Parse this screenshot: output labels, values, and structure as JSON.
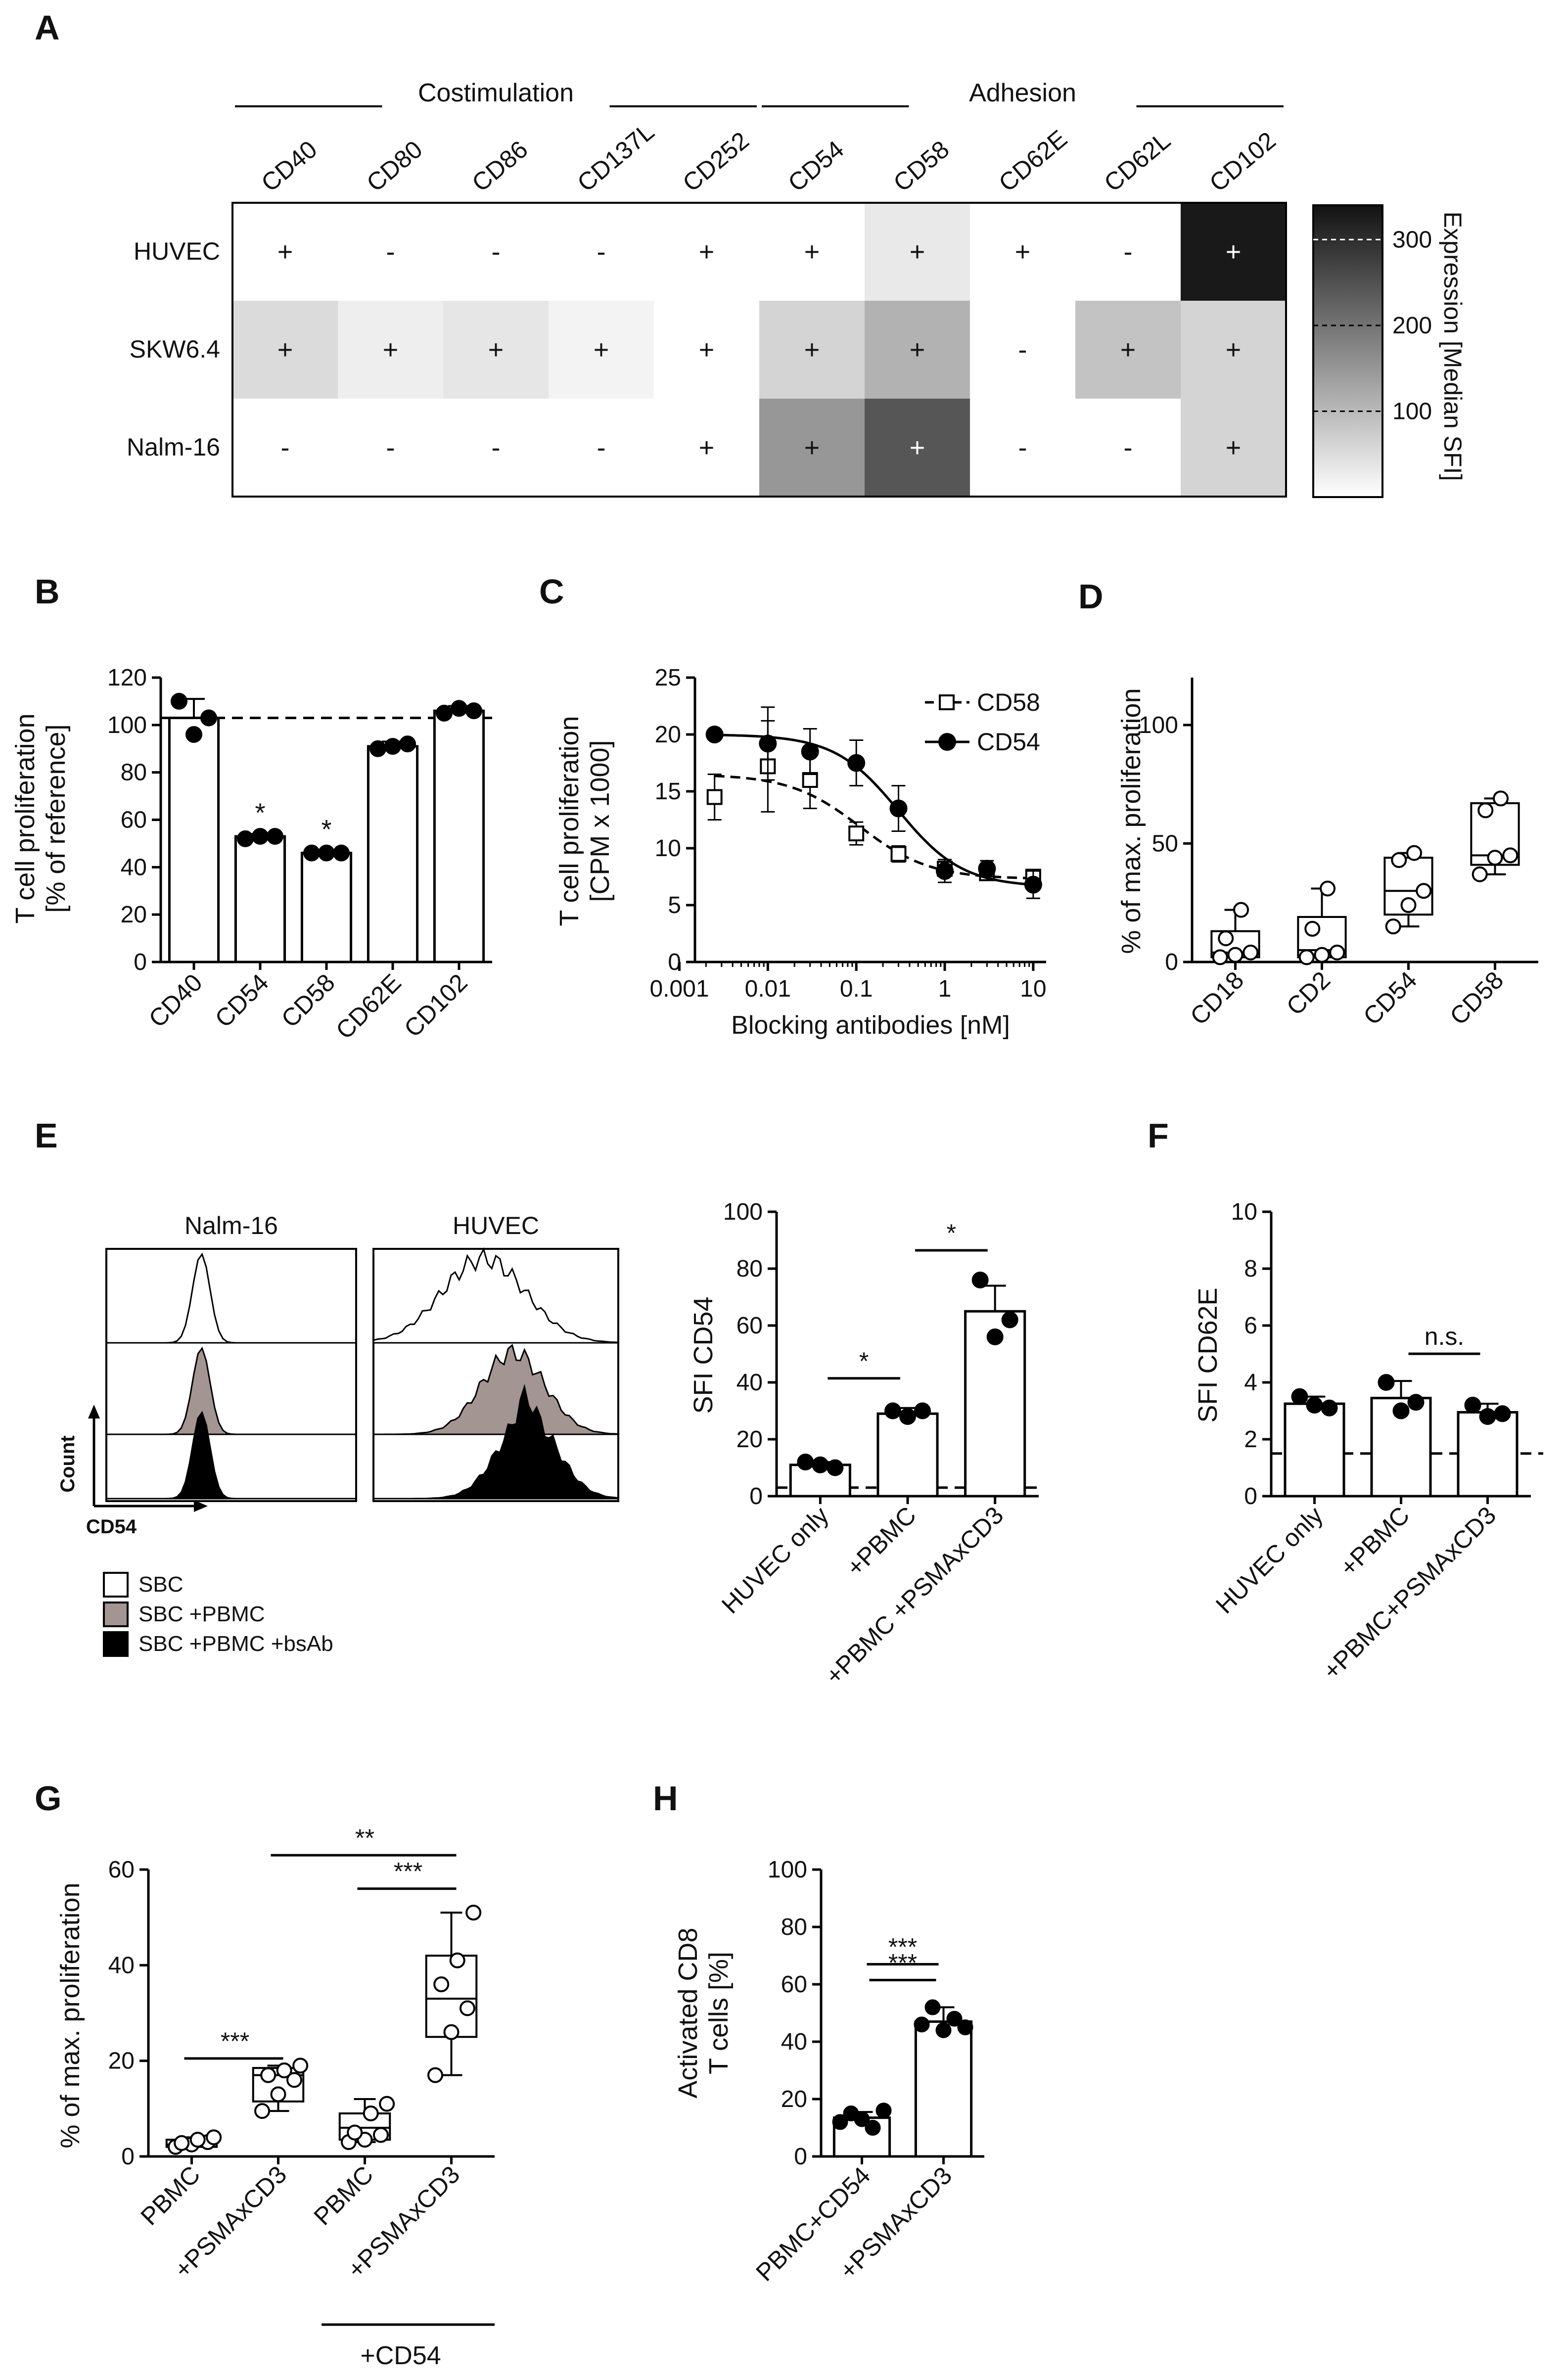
{
  "panels": {
    "A": "A",
    "B": "B",
    "C": "C",
    "D": "D",
    "E": "E",
    "F": "F",
    "G": "G",
    "H": "H"
  },
  "chart_data": [
    {
      "id": "A",
      "type": "heatmap",
      "groups": [
        {
          "label": "Costimulation",
          "columns": [
            "CD40",
            "CD80",
            "CD86",
            "CD137L",
            "CD252"
          ]
        },
        {
          "label": "Adhesion",
          "columns": [
            "CD54",
            "CD58",
            "CD62E",
            "CD62L",
            "CD102"
          ]
        }
      ],
      "columns": [
        "CD40",
        "CD80",
        "CD86",
        "CD137L",
        "CD252",
        "CD54",
        "CD58",
        "CD62E",
        "CD62L",
        "CD102"
      ],
      "rows": [
        "HUVEC",
        "SKW6.4",
        "Nalm-16"
      ],
      "signs": [
        [
          "+",
          "-",
          "-",
          "-",
          "+",
          "+",
          "+",
          "+",
          "-",
          "+"
        ],
        [
          "+",
          "+",
          "+",
          "+",
          "+",
          "+",
          "+",
          "-",
          "+",
          "+"
        ],
        [
          "-",
          "-",
          "-",
          "-",
          "+",
          "+",
          "+",
          "-",
          "-",
          "+"
        ]
      ],
      "values": [
        [
          0,
          0,
          0,
          0,
          0,
          0,
          25,
          0,
          0,
          330
        ],
        [
          45,
          18,
          30,
          10,
          0,
          55,
          105,
          0,
          80,
          55
        ],
        [
          0,
          0,
          0,
          0,
          0,
          145,
          240,
          0,
          0,
          55
        ]
      ],
      "colorbar": {
        "label": "Expression [Median SFI]",
        "ticks": [
          100,
          200,
          300
        ],
        "range": [
          0,
          340
        ]
      }
    },
    {
      "id": "B",
      "type": "bar",
      "categories": [
        "CD40",
        "CD54",
        "CD58",
        "CD62E",
        "CD102"
      ],
      "values": [
        103,
        53,
        46,
        91,
        106
      ],
      "errors": [
        8,
        1,
        1,
        2,
        2
      ],
      "points": [
        [
          110,
          96,
          103
        ],
        [
          52,
          53,
          53
        ],
        [
          46,
          46,
          46
        ],
        [
          90,
          91,
          92
        ],
        [
          105,
          107,
          106
        ]
      ],
      "significance": [
        "",
        "*",
        "*",
        "",
        ""
      ],
      "reference_line": 103,
      "ylabel": "T cell proliferation\n[% of reference]",
      "ylabel_lines": [
        "T cell proliferation",
        "[% of reference]"
      ],
      "ylim": [
        0,
        120
      ],
      "yticks": [
        0,
        20,
        40,
        60,
        80,
        100,
        120
      ]
    },
    {
      "id": "C",
      "type": "line",
      "xscale": "log",
      "xlabel": "Blocking antibodies [nM]",
      "ylabel_lines": [
        "T cell proliferation",
        "[CPM x 1000]"
      ],
      "xticks": [
        0.001,
        0.01,
        0.1,
        1,
        10
      ],
      "xtick_labels": [
        "0.001",
        "0.01",
        "0.1",
        "1",
        "10"
      ],
      "ylim": [
        0,
        25
      ],
      "yticks": [
        0,
        5,
        10,
        15,
        20,
        25
      ],
      "series": [
        {
          "name": "CD58",
          "marker": "open-square",
          "x": [
            0.0025,
            0.01,
            0.03,
            0.1,
            0.3,
            1,
            3,
            10
          ],
          "y": [
            14.5,
            17.2,
            16,
            11.3,
            9.5,
            8.2,
            7.8,
            7.5
          ],
          "errors": [
            2,
            4,
            2.5,
            1,
            0.7,
            0.6,
            0.5,
            0.6
          ]
        },
        {
          "name": "CD54",
          "marker": "filled-circle",
          "x": [
            0.0025,
            0.01,
            0.03,
            0.1,
            0.3,
            1,
            3,
            10
          ],
          "y": [
            20,
            19.2,
            18.5,
            17.5,
            13.5,
            8,
            8.2,
            6.8
          ],
          "errors": [
            0,
            3.2,
            2,
            2,
            2,
            1,
            0.7,
            1.2
          ]
        }
      ]
    },
    {
      "id": "D",
      "type": "box",
      "categories": [
        "CD18",
        "CD2",
        "CD54",
        "CD58"
      ],
      "boxes": [
        {
          "min": 2,
          "q1": 2,
          "median": 4,
          "q3": 13,
          "max": 22
        },
        {
          "min": 2,
          "q1": 2,
          "median": 5,
          "q3": 19,
          "max": 31
        },
        {
          "min": 15,
          "q1": 20,
          "median": 30,
          "q3": 44,
          "max": 46
        },
        {
          "min": 37,
          "q1": 41,
          "median": 45,
          "q3": 67,
          "max": 69
        }
      ],
      "points": [
        [
          2,
          3,
          4,
          10,
          22
        ],
        [
          2,
          3,
          4,
          14,
          31
        ],
        [
          15,
          24,
          30,
          43,
          46
        ],
        [
          37,
          44,
          45,
          64,
          69
        ]
      ],
      "ylabel": "% of max. proliferation",
      "ylim": [
        0,
        120
      ],
      "yticks": [
        0,
        50,
        100
      ]
    },
    {
      "id": "E_hist",
      "type": "histogram",
      "titles": [
        "Nalm-16",
        "HUVEC"
      ],
      "xlabel": "CD54",
      "ylabel": "Count",
      "legend": [
        "SBC",
        "SBC +PBMC",
        "SBC +PBMC +bsAb"
      ]
    },
    {
      "id": "E_bar",
      "type": "bar",
      "categories": [
        "HUVEC only",
        "+PBMC",
        "+PBMC +PSMAxCD3"
      ],
      "values": [
        11,
        29,
        65
      ],
      "errors": [
        1,
        2,
        9
      ],
      "points": [
        [
          12,
          11,
          10
        ],
        [
          30,
          28,
          30
        ],
        [
          76,
          56,
          62
        ]
      ],
      "reference_line": 3,
      "ylabel": "SFI  CD54",
      "ylim": [
        0,
        100
      ],
      "yticks": [
        0,
        20,
        40,
        60,
        80,
        100
      ],
      "brackets": [
        {
          "from": 0,
          "to": 1,
          "label": "*"
        },
        {
          "from": 1,
          "to": 2,
          "label": "*"
        }
      ]
    },
    {
      "id": "F",
      "type": "bar",
      "categories": [
        "HUVEC only",
        "+PBMC",
        "+PBMC+PSMAxCD3"
      ],
      "values": [
        3.25,
        3.45,
        2.95
      ],
      "errors": [
        0.25,
        0.6,
        0.3
      ],
      "points": [
        [
          3.5,
          3.2,
          3.1
        ],
        [
          4.0,
          3.0,
          3.3
        ],
        [
          3.2,
          2.8,
          2.9
        ]
      ],
      "reference_line": 1.5,
      "ylabel": "SFI  CD62E",
      "ylim": [
        0,
        10
      ],
      "yticks": [
        0,
        2,
        4,
        6,
        8,
        10
      ],
      "brackets": [
        {
          "from": 1,
          "to": 2,
          "label": "n.s."
        }
      ]
    },
    {
      "id": "G",
      "type": "box",
      "categories": [
        "PBMC",
        "+PSMAxCD3",
        "PBMC",
        "+PSMAxCD3"
      ],
      "group_label": "+CD54",
      "boxes": [
        {
          "min": 2,
          "q1": 2,
          "median": 2.5,
          "q3": 3.5,
          "max": 4
        },
        {
          "min": 9.5,
          "q1": 11.5,
          "median": 17,
          "q3": 18.5,
          "max": 19
        },
        {
          "min": 3,
          "q1": 3.5,
          "median": 6,
          "q3": 9,
          "max": 12
        },
        {
          "min": 17,
          "q1": 25,
          "median": 33,
          "q3": 42,
          "max": 51
        }
      ],
      "points": [
        [
          2,
          2.5,
          3,
          2.8,
          3.5,
          4
        ],
        [
          9.5,
          13,
          16,
          17,
          18,
          19
        ],
        [
          3,
          3.5,
          4.5,
          5,
          9,
          11
        ],
        [
          17,
          26,
          31,
          36,
          41,
          51
        ]
      ],
      "ylabel": "% of max. proliferation",
      "ylim": [
        0,
        60
      ],
      "yticks": [
        0,
        20,
        40,
        60
      ],
      "brackets": [
        {
          "from": 0,
          "to": 1,
          "label": "***"
        },
        {
          "from": 2,
          "to": 3,
          "label": "***"
        },
        {
          "from": 1,
          "to": 3,
          "label": "**"
        }
      ]
    },
    {
      "id": "H",
      "type": "bar",
      "categories": [
        "PBMC+CD54",
        "+PSMAxCD3"
      ],
      "values": [
        13.5,
        47
      ],
      "errors": [
        2,
        5
      ],
      "points": [
        [
          12,
          15,
          13,
          10,
          16
        ],
        [
          46,
          52,
          44,
          48,
          45
        ]
      ],
      "ylabel_lines": [
        "Activated CD8",
        "T cells [%]"
      ],
      "ylim": [
        0,
        100
      ],
      "yticks": [
        0,
        20,
        40,
        60,
        80,
        100
      ],
      "brackets": [
        {
          "from": 0,
          "to": 1,
          "label": "***"
        }
      ]
    }
  ]
}
